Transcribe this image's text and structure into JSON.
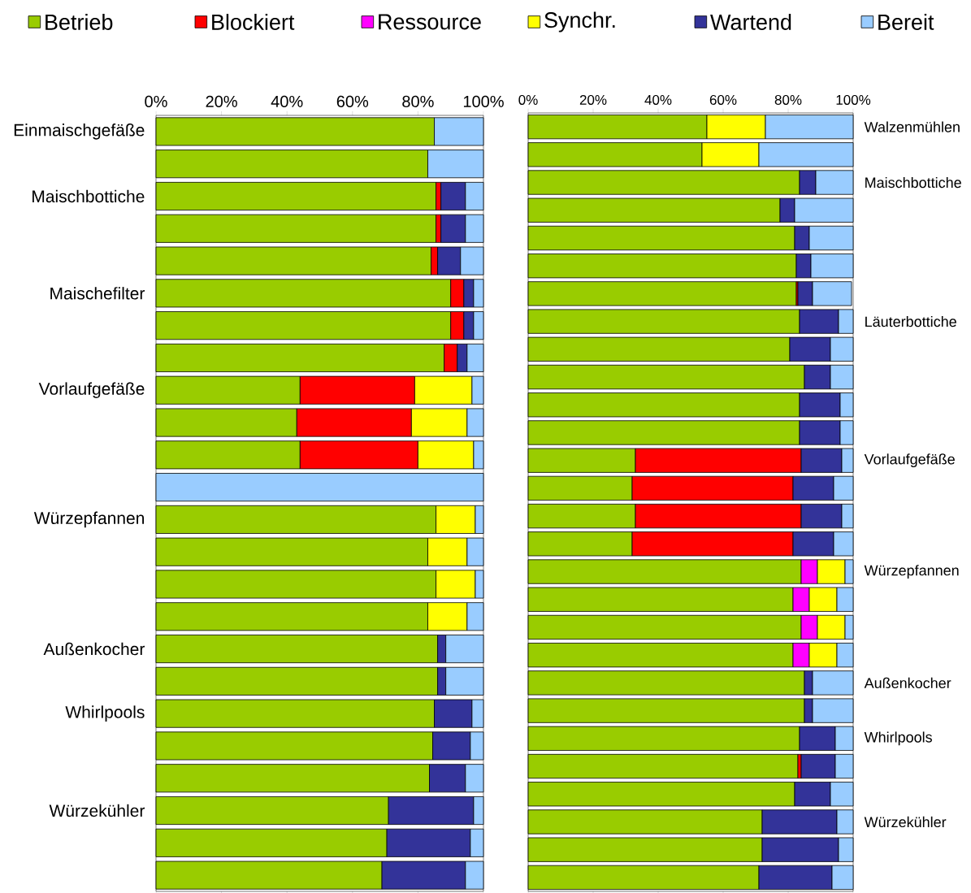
{
  "chart_data": [
    {
      "type": "bar",
      "orientation": "horizontal",
      "stacked": true,
      "categories": [
        "Einmaischgefäße",
        null,
        "Maischbottiche",
        null,
        null,
        "Maischefilter",
        null,
        null,
        "Vorlaufgefäße",
        null,
        null,
        null,
        "Würzepfannen",
        null,
        null,
        null,
        "Außenkocher",
        null,
        "Whirlpools",
        null,
        null,
        "Würzekühler",
        null,
        null
      ],
      "xlim": [
        0,
        100
      ],
      "xticks": [
        {
          "value": 0,
          "label": "0%"
        },
        {
          "value": 20,
          "label": "20%"
        },
        {
          "value": 40,
          "label": "40%"
        },
        {
          "value": 60,
          "label": "60%"
        },
        {
          "value": 80,
          "label": "80%"
        },
        {
          "value": 100,
          "label": "100%"
        }
      ],
      "series": [
        {
          "color": "#99cc00",
          "values": [
            85,
            83,
            85.5,
            85.5,
            84,
            90,
            90,
            88,
            44,
            43,
            44,
            null,
            85.5,
            83,
            85.5,
            83,
            86,
            86,
            85,
            84.5,
            83.5,
            71,
            70.5,
            69
          ]
        },
        {
          "color": "#ff0000",
          "values": [
            null,
            null,
            1.5,
            1.5,
            2,
            4,
            4,
            4,
            35,
            35,
            36,
            null,
            null,
            null,
            null,
            null,
            null,
            null,
            null,
            null,
            null,
            null,
            null,
            null
          ]
        },
        {
          "color": "#ffff00",
          "values": [
            null,
            null,
            null,
            null,
            null,
            null,
            null,
            null,
            17.5,
            17,
            17,
            null,
            12,
            12,
            12,
            12,
            null,
            null,
            null,
            null,
            null,
            null,
            null,
            null
          ]
        },
        {
          "color": "#333399",
          "values": [
            null,
            null,
            7.5,
            7.5,
            7,
            3,
            3,
            3,
            null,
            null,
            null,
            null,
            null,
            null,
            null,
            null,
            2.5,
            2.5,
            11.5,
            11.5,
            11,
            26,
            25.5,
            25.5
          ]
        },
        {
          "color": "#99ccff",
          "values": [
            15,
            17,
            5.5,
            5.5,
            7,
            3,
            3,
            5,
            3.5,
            5,
            3,
            100,
            2.5,
            5,
            2.5,
            5,
            11.5,
            11.5,
            3.5,
            4,
            5.5,
            3,
            4,
            5.5
          ]
        }
      ]
    },
    {
      "type": "bar",
      "orientation": "horizontal",
      "stacked": true,
      "legend": "top",
      "categories": [
        "Walzenmühlen",
        null,
        "Maischbottiche",
        null,
        null,
        null,
        null,
        "Läuterbottiche",
        null,
        null,
        null,
        null,
        "Vorlaufgefäße",
        null,
        null,
        null,
        "Würzepfannen",
        null,
        null,
        null,
        "Außenkocher",
        null,
        "Whirlpools",
        null,
        null,
        "Würzekühler",
        null,
        null
      ],
      "xlim": [
        0,
        100
      ],
      "xticks": [
        {
          "value": 0,
          "label": "0%"
        },
        {
          "value": 20,
          "label": "20%"
        },
        {
          "value": 40,
          "label": "40%"
        },
        {
          "value": 60,
          "label": "60%"
        },
        {
          "value": 80,
          "label": "80%"
        },
        {
          "value": 100,
          "label": "100%"
        }
      ],
      "series": [
        {
          "name": "Betrieb",
          "color": "#99cc00",
          "values": [
            55,
            53.5,
            83.5,
            77.5,
            82,
            82.5,
            82.5,
            83.5,
            80.5,
            85,
            83.5,
            83.5,
            33,
            32,
            33,
            32,
            84,
            81.5,
            84,
            81.5,
            85,
            85,
            83.5,
            83,
            82,
            72,
            72,
            71
          ]
        },
        {
          "name": "Blockiert",
          "color": "#ff0000",
          "values": [
            null,
            null,
            null,
            null,
            null,
            null,
            0.5,
            null,
            null,
            null,
            null,
            null,
            51,
            49.5,
            51,
            49.5,
            null,
            null,
            null,
            null,
            null,
            null,
            null,
            1,
            null,
            null,
            null,
            null
          ]
        },
        {
          "name": "Ressource",
          "color": "#ff00ff",
          "values": [
            null,
            null,
            null,
            null,
            null,
            null,
            null,
            null,
            null,
            null,
            null,
            null,
            null,
            null,
            null,
            null,
            5,
            5,
            5,
            5,
            null,
            null,
            null,
            null,
            null,
            null,
            null,
            null
          ]
        },
        {
          "name": "Synchr.",
          "color": "#ffff00",
          "values": [
            18,
            17.5,
            null,
            null,
            null,
            null,
            null,
            null,
            null,
            null,
            null,
            null,
            null,
            null,
            null,
            null,
            8.5,
            8.5,
            8.5,
            8.5,
            null,
            null,
            null,
            null,
            null,
            null,
            null,
            null
          ]
        },
        {
          "name": "Wartend",
          "color": "#333399",
          "values": [
            null,
            null,
            5,
            4.5,
            4.5,
            4.5,
            4.5,
            12,
            12.5,
            8,
            12.5,
            12.5,
            12.5,
            12.5,
            12.5,
            12.5,
            null,
            null,
            null,
            null,
            2.5,
            2.5,
            11,
            10.5,
            11,
            23,
            23.5,
            22.5
          ]
        },
        {
          "name": "Bereit",
          "color": "#99ccff",
          "values": [
            27,
            29,
            11.5,
            18,
            13.5,
            13,
            12,
            4.5,
            7,
            7,
            4,
            4,
            3.5,
            6,
            3.5,
            6,
            2.5,
            5,
            2.5,
            5,
            12.5,
            12.5,
            5.5,
            5.5,
            7,
            5,
            4.5,
            6.5
          ]
        }
      ]
    }
  ]
}
